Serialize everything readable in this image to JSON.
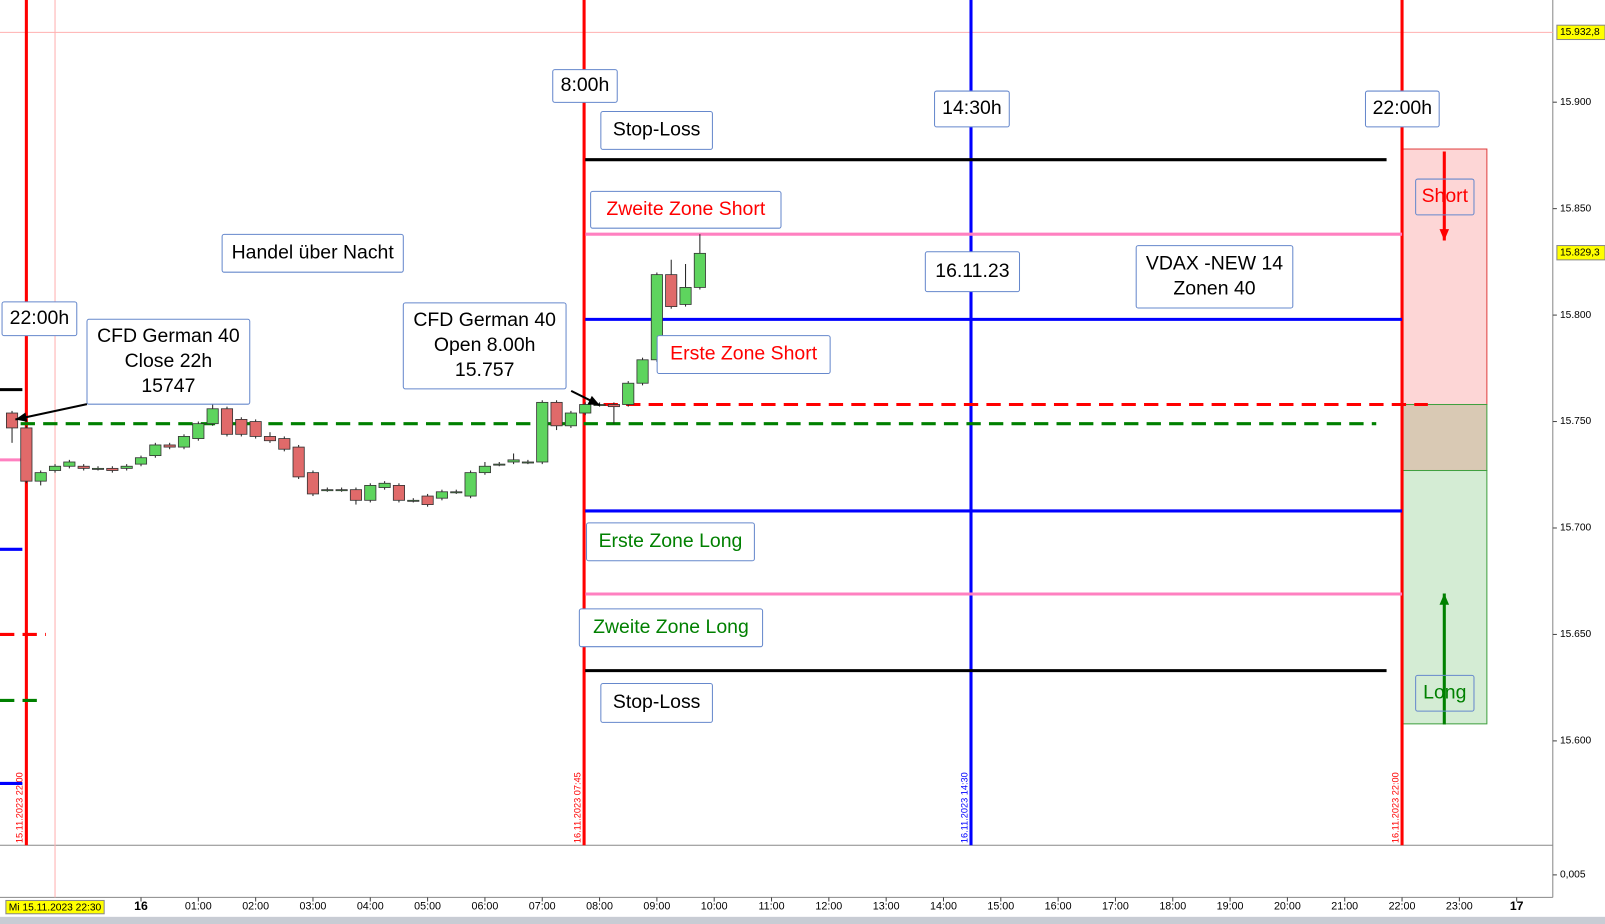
{
  "chart_data": {
    "type": "candlestick",
    "x": [
      -2.25,
      -2,
      -1.75,
      -1.5,
      -1.25,
      -1,
      -0.75,
      -0.5,
      -0.25,
      0,
      0.25,
      0.5,
      0.75,
      1,
      1.25,
      1.5,
      1.75,
      2,
      2.25,
      2.5,
      2.75,
      3,
      3.25,
      3.5,
      3.75,
      4,
      4.25,
      4.5,
      4.75,
      5,
      5.25,
      5.5,
      5.75,
      6,
      6.25,
      6.5,
      6.75,
      7,
      7.25,
      7.5,
      7.75,
      8,
      8.25,
      8.5,
      8.75,
      9,
      9.25,
      9.5,
      9.75
    ],
    "open": [
      15754,
      15747,
      15722,
      15727,
      15729,
      15729,
      15728,
      15728,
      15728,
      15730,
      15734,
      15739,
      15738,
      15742,
      15749,
      15756,
      15751,
      15750,
      15743,
      15742,
      15738,
      15726,
      15718,
      15718,
      15718,
      15713,
      15719,
      15720,
      15713,
      15715,
      15714,
      15717,
      15715,
      15726,
      15730,
      15731,
      15731,
      15731,
      15759,
      15748,
      15754,
      15758,
      15758,
      15758,
      15768,
      15779,
      15819,
      15805,
      15813
    ],
    "high": [
      15755,
      15748,
      15727,
      15730,
      15732,
      15730,
      15729,
      15729,
      15730,
      15734,
      15740,
      15740,
      15744,
      15750,
      15766,
      15757,
      15752,
      15751,
      15745,
      15743,
      15739,
      15727,
      15719,
      15719,
      15719,
      15721,
      15722,
      15721,
      15714,
      15716,
      15718,
      15718,
      15727,
      15731,
      15731,
      15735,
      15732,
      15760,
      15760,
      15755,
      15759,
      15759,
      15759,
      15769,
      15780,
      15820,
      15826,
      15824,
      15838
    ],
    "low": [
      15740,
      15721,
      15720,
      15726,
      15728,
      15727,
      15727,
      15726,
      15727,
      15729,
      15733,
      15737,
      15737,
      15741,
      15748,
      15743,
      15743,
      15742,
      15740,
      15736,
      15723,
      15715,
      15717,
      15717,
      15711,
      15712,
      15718,
      15712,
      15712,
      15710,
      15713,
      15716,
      15714,
      15725,
      15729,
      15730,
      15730,
      15730,
      15746,
      15747,
      15753,
      15757,
      15749,
      15757,
      15767,
      15778,
      15803,
      15804,
      15812
    ],
    "close": [
      15747,
      15722,
      15726,
      15729,
      15731,
      15728,
      15728,
      15727,
      15729,
      15733,
      15739,
      15738,
      15743,
      15749,
      15756,
      15744,
      15744,
      15743,
      15741,
      15737,
      15724,
      15716,
      15718,
      15718,
      15713,
      15720,
      15721,
      15713,
      15713,
      15711,
      15717,
      15717,
      15726,
      15729,
      15730,
      15732,
      15731,
      15759,
      15748,
      15754,
      15758,
      15758,
      15757,
      15768,
      15779,
      15819,
      15804,
      15813,
      15829
    ],
    "up_color": "#5ed45e",
    "down_color": "#e06a6a",
    "xlim": [
      -2.46,
      24.63
    ],
    "ylim": [
      15551,
      15948
    ],
    "xticks": [
      {
        "value": 0,
        "label": "16"
      },
      {
        "value": 1,
        "label": "01:00"
      },
      {
        "value": 2,
        "label": "02:00"
      },
      {
        "value": 3,
        "label": "03:00"
      },
      {
        "value": 4,
        "label": "04:00"
      },
      {
        "value": 5,
        "label": "05:00"
      },
      {
        "value": 6,
        "label": "06:00"
      },
      {
        "value": 7,
        "label": "07:00"
      },
      {
        "value": 8,
        "label": "08:00"
      },
      {
        "value": 9,
        "label": "09:00"
      },
      {
        "value": 10,
        "label": "10:00"
      },
      {
        "value": 11,
        "label": "11:00"
      },
      {
        "value": 12,
        "label": "12:00"
      },
      {
        "value": 13,
        "label": "13:00"
      },
      {
        "value": 14,
        "label": "14:00"
      },
      {
        "value": 15,
        "label": "15:00"
      },
      {
        "value": 16,
        "label": "16:00"
      },
      {
        "value": 17,
        "label": "17:00"
      },
      {
        "value": 18,
        "label": "18:00"
      },
      {
        "value": 19,
        "label": "19:00"
      },
      {
        "value": 20,
        "label": "20:00"
      },
      {
        "value": 21,
        "label": "21:00"
      },
      {
        "value": 22,
        "label": "22:00"
      },
      {
        "value": 23,
        "label": "23:00"
      },
      {
        "value": 24,
        "label": "17"
      }
    ],
    "yticks": [
      {
        "value": 15600,
        "label": "15.600"
      },
      {
        "value": 15650,
        "label": "15.650"
      },
      {
        "value": 15700,
        "label": "15.700"
      },
      {
        "value": 15750,
        "label": "15.750"
      },
      {
        "value": 15800,
        "label": "15.800"
      },
      {
        "value": 15850,
        "label": "15.850"
      },
      {
        "value": 15900,
        "label": "15.900"
      }
    ],
    "cursor": {
      "x": {
        "value": -1.5,
        "label": "Mi 15.11.2023 22:30"
      },
      "y": {
        "value": 15932.8,
        "label": "15.932,8"
      }
    },
    "last_price": {
      "value": 15829.3,
      "label": "15.829,3"
    },
    "indicator_tick": {
      "value": 0.005,
      "label": "0,005"
    },
    "levels": [
      {
        "value": 15873,
        "from": 7.75,
        "to": 21.73,
        "color": "#000000",
        "dashed": false
      },
      {
        "value": 15838,
        "from": 7.75,
        "to": 22,
        "color": "#ff80c0",
        "dashed": false
      },
      {
        "value": 15798,
        "from": 7.75,
        "to": 22,
        "color": "#0000ff",
        "dashed": false
      },
      {
        "value": 15758,
        "from": 8.07,
        "to": 22.45,
        "color": "#ff0000",
        "dashed": true
      },
      {
        "value": 15749,
        "from": -2.1,
        "to": 21.55,
        "color": "#008000",
        "dashed": true
      },
      {
        "value": 15708,
        "from": 7.75,
        "to": 22,
        "color": "#0000ff",
        "dashed": false
      },
      {
        "value": 15669,
        "from": 7.75,
        "to": 22,
        "color": "#ff80c0",
        "dashed": false
      },
      {
        "value": 15633,
        "from": 7.75,
        "to": 21.73,
        "color": "#000000",
        "dashed": false
      },
      {
        "value": 15765,
        "from": -2.46,
        "to": -2.07,
        "color": "#000000",
        "dashed": false
      },
      {
        "value": 15732,
        "from": -2.46,
        "to": -2.07,
        "color": "#ff80c0",
        "dashed": false
      },
      {
        "value": 15690,
        "from": -2.46,
        "to": -2.07,
        "color": "#0000ff",
        "dashed": false
      },
      {
        "value": 15650,
        "from": -2.46,
        "to": -1.66,
        "color": "#ff0000",
        "dashed": true
      },
      {
        "value": 15619,
        "from": -2.46,
        "to": -1.79,
        "color": "#008000",
        "dashed": true
      },
      {
        "value": 15580,
        "from": -2.46,
        "to": -2.07,
        "color": "#0000ff",
        "dashed": false
      }
    ],
    "vlines": [
      {
        "x": -2,
        "label": "15.11.2023 22:00",
        "color": "#ff0000"
      },
      {
        "x": 7.73,
        "label": "16.11.2023 07:45",
        "color": "#ff0000"
      },
      {
        "x": 14.48,
        "label": "16.11.2023 14:30",
        "color": "#0000ff"
      },
      {
        "x": 22,
        "label": "16.11.2023 22:00",
        "color": "#ff0000"
      }
    ],
    "zones": [
      {
        "from": 15758,
        "to": 15878,
        "x0": 22,
        "x1": 23.48,
        "fill": "#fdd6d6",
        "stroke": "#e04040"
      },
      {
        "from": 15727,
        "to": 15758,
        "x0": 22,
        "x1": 23.48,
        "fill": "#d9c9b4",
        "stroke": "#40a040"
      },
      {
        "from": 15608,
        "to": 15727,
        "x0": 22,
        "x1": 23.48,
        "fill": "#d4ecd4",
        "stroke": "#40a040"
      }
    ],
    "annotations": [
      {
        "lines": [
          "8:00h"
        ],
        "color": "#000000"
      },
      {
        "lines": [
          "14:30h"
        ],
        "color": "#000000"
      },
      {
        "lines": [
          "22:00h"
        ],
        "color": "#000000"
      },
      {
        "lines": [
          "22:00h"
        ],
        "color": "#000000"
      },
      {
        "lines": [
          "Stop-Loss"
        ],
        "color": "#000000"
      },
      {
        "lines": [
          "Zweite Zone Short"
        ],
        "color": "#ff0000"
      },
      {
        "lines": [
          "Handel über Nacht"
        ],
        "color": "#000000"
      },
      {
        "lines": [
          "16.11.23"
        ],
        "color": "#000000"
      },
      {
        "lines": [
          "VDAX -NEW 14",
          "Zonen 40"
        ],
        "color": "#000000"
      },
      {
        "lines": [
          "CFD German 40",
          "Close 22h",
          "15747"
        ],
        "color": "#000000"
      },
      {
        "lines": [
          "CFD German 40",
          "Open 8.00h",
          "15.757"
        ],
        "color": "#000000"
      },
      {
        "lines": [
          "Erste Zone Short"
        ],
        "color": "#ff0000"
      },
      {
        "lines": [
          "Erste Zone Long"
        ],
        "color": "#008000"
      },
      {
        "lines": [
          "Zweite Zone Long"
        ],
        "color": "#008000"
      },
      {
        "lines": [
          "Stop-Loss"
        ],
        "color": "#000000"
      },
      {
        "lines": [
          "Short"
        ],
        "color": "#ff0000"
      },
      {
        "lines": [
          "Long"
        ],
        "color": "#008000"
      }
    ]
  }
}
